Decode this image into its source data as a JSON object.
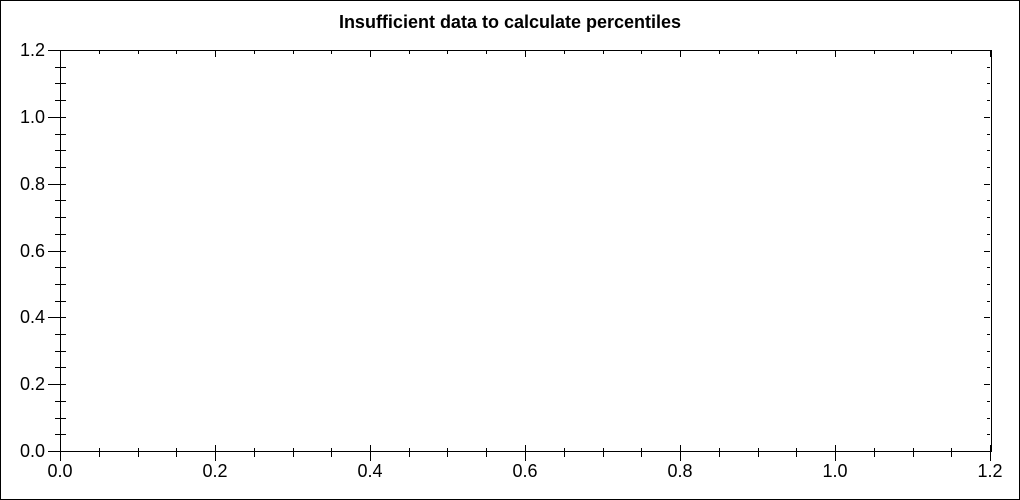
{
  "window": {
    "background_color": "#ffffff",
    "border_color": "#000000"
  },
  "chart_data": {
    "type": "line",
    "title": "Insufficient data to calculate percentiles",
    "series": [],
    "xlabel": "",
    "ylabel": "",
    "xlim": [
      0.0,
      1.2
    ],
    "ylim": [
      0.0,
      1.2
    ],
    "x_tick_labels": [
      "0.0",
      "0.2",
      "0.4",
      "0.6",
      "0.8",
      "1.0",
      "1.2"
    ],
    "y_tick_labels": [
      "0.0",
      "0.2",
      "0.4",
      "0.6",
      "0.8",
      "1.0",
      "1.2"
    ],
    "major_tick_step": 0.2,
    "minor_tick_step": 0.05,
    "grid": false,
    "legend_position": "none",
    "frame_style": "box-with-ticks-all-sides",
    "axis_color": "#000000",
    "text_color": "#000000"
  }
}
